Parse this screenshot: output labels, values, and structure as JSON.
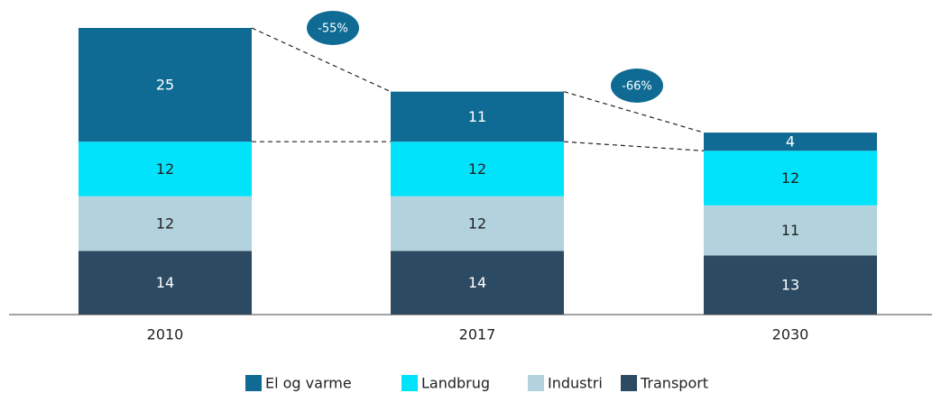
{
  "chart_data": {
    "type": "stacked_bar",
    "categories": [
      "2010",
      "2017",
      "2030"
    ],
    "series": [
      {
        "name": "El og varme",
        "color": "#0f6b94",
        "values": [
          25,
          11,
          4
        ]
      },
      {
        "name": "Landbrug",
        "color": "#00e3fb",
        "values": [
          12,
          12,
          12
        ]
      },
      {
        "name": "Industri",
        "color": "#b2d3de",
        "values": [
          12,
          12,
          11
        ]
      },
      {
        "name": "Transport",
        "color": "#2c4a62",
        "values": [
          14,
          14,
          13
        ]
      }
    ],
    "annotations": [
      "-55%",
      "-66%"
    ],
    "legend": "bottom"
  }
}
